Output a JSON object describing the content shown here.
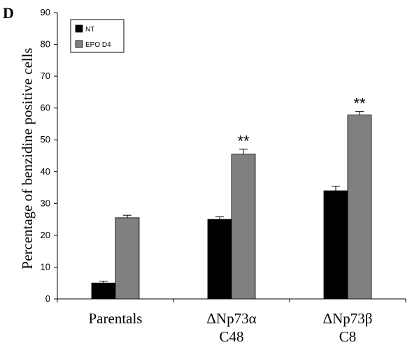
{
  "panel_label": "D",
  "chart_data": {
    "type": "bar",
    "title": "",
    "xlabel": "",
    "ylabel": "Percentage of benzidine positive cells",
    "ylim": [
      0,
      90
    ],
    "yticks": [
      0,
      10,
      20,
      30,
      40,
      50,
      60,
      70,
      80,
      90
    ],
    "grid": false,
    "legend_position": "top-left",
    "categories": [
      [
        "Parentals"
      ],
      [
        "ΔNp73α",
        "C48"
      ],
      [
        "ΔNp73β",
        "C8"
      ]
    ],
    "series": [
      {
        "name": "NT",
        "color": "#000000",
        "values": [
          5,
          25,
          34
        ],
        "errors": [
          0.6,
          0.8,
          1.4
        ]
      },
      {
        "name": "EPO D4",
        "color": "#808080",
        "values": [
          25.5,
          45.5,
          57.8
        ],
        "errors": [
          0.8,
          1.6,
          1.1
        ]
      }
    ],
    "annotations": [
      "",
      "**",
      "**"
    ]
  }
}
